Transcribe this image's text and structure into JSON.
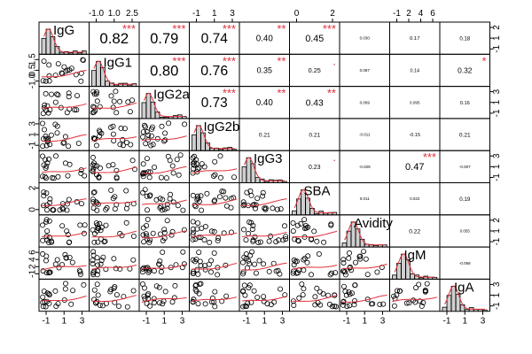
{
  "chart_data": {
    "type": "scatter-matrix",
    "variables": [
      "IgG",
      "IgG1",
      "IgG2a",
      "IgG2b",
      "IgG3",
      "SBA",
      "Avidity",
      "IgM",
      "IgA"
    ],
    "correlations": [
      {
        "row": 0,
        "col": 1,
        "value": "0.82",
        "stars": "***"
      },
      {
        "row": 0,
        "col": 2,
        "value": "0.79",
        "stars": "***"
      },
      {
        "row": 0,
        "col": 3,
        "value": "0.74",
        "stars": "***"
      },
      {
        "row": 0,
        "col": 4,
        "value": "0.40",
        "stars": "**"
      },
      {
        "row": 0,
        "col": 5,
        "value": "0.45",
        "stars": "***"
      },
      {
        "row": 0,
        "col": 6,
        "value": "0.030",
        "stars": ""
      },
      {
        "row": 0,
        "col": 7,
        "value": "0.17",
        "stars": ""
      },
      {
        "row": 0,
        "col": 8,
        "value": "0.18",
        "stars": ""
      },
      {
        "row": 1,
        "col": 2,
        "value": "0.80",
        "stars": "***"
      },
      {
        "row": 1,
        "col": 3,
        "value": "0.76",
        "stars": "***"
      },
      {
        "row": 1,
        "col": 4,
        "value": "0.35",
        "stars": "**"
      },
      {
        "row": 1,
        "col": 5,
        "value": "0.25",
        "stars": "."
      },
      {
        "row": 1,
        "col": 6,
        "value": "0.087",
        "stars": ""
      },
      {
        "row": 1,
        "col": 7,
        "value": "0.14",
        "stars": ""
      },
      {
        "row": 1,
        "col": 8,
        "value": "0.32",
        "stars": "*"
      },
      {
        "row": 2,
        "col": 3,
        "value": "0.73",
        "stars": "***"
      },
      {
        "row": 2,
        "col": 4,
        "value": "0.40",
        "stars": "**"
      },
      {
        "row": 2,
        "col": 5,
        "value": "0.43",
        "stars": "**"
      },
      {
        "row": 2,
        "col": 6,
        "value": "0.069",
        "stars": ""
      },
      {
        "row": 2,
        "col": 7,
        "value": "0.095",
        "stars": ""
      },
      {
        "row": 2,
        "col": 8,
        "value": "0.16",
        "stars": ""
      },
      {
        "row": 3,
        "col": 4,
        "value": "0.21",
        "stars": ""
      },
      {
        "row": 3,
        "col": 5,
        "value": "0.21",
        "stars": ""
      },
      {
        "row": 3,
        "col": 6,
        "value": "-0.011",
        "stars": ""
      },
      {
        "row": 3,
        "col": 7,
        "value": "-0.15",
        "stars": ""
      },
      {
        "row": 3,
        "col": 8,
        "value": "0.21",
        "stars": ""
      },
      {
        "row": 4,
        "col": 5,
        "value": "0.23",
        "stars": "."
      },
      {
        "row": 4,
        "col": 6,
        "value": "-0.029",
        "stars": ""
      },
      {
        "row": 4,
        "col": 7,
        "value": "0.47",
        "stars": "***"
      },
      {
        "row": 4,
        "col": 8,
        "value": "-0.007",
        "stars": ""
      },
      {
        "row": 5,
        "col": 6,
        "value": "0.011",
        "stars": ""
      },
      {
        "row": 5,
        "col": 7,
        "value": "0.022",
        "stars": ""
      },
      {
        "row": 5,
        "col": 8,
        "value": "0.19",
        "stars": ""
      },
      {
        "row": 6,
        "col": 7,
        "value": "0.22",
        "stars": ""
      },
      {
        "row": 6,
        "col": 8,
        "value": "0.055",
        "stars": ""
      },
      {
        "row": 7,
        "col": 8,
        "value": "-0.058",
        "stars": ""
      }
    ],
    "top_axis": [
      {
        "col": 1,
        "ticks": [
          "-1.0",
          "1.0",
          "2.5"
        ]
      },
      {
        "col": 3,
        "ticks": [
          "-1",
          "1",
          "3"
        ]
      },
      {
        "col": 5,
        "ticks": [
          "0",
          "2"
        ]
      },
      {
        "col": 7,
        "ticks": [
          "-1",
          "2",
          "4",
          "6"
        ]
      }
    ],
    "bottom_axis": [
      {
        "col": 0,
        "ticks": [
          "-1",
          "1",
          "3"
        ]
      },
      {
        "col": 2,
        "ticks": [
          "-1",
          "1",
          "3"
        ]
      },
      {
        "col": 4,
        "ticks": [
          "-1",
          "1",
          "3"
        ]
      },
      {
        "col": 6,
        "ticks": [
          "-1",
          "1",
          "3"
        ]
      },
      {
        "col": 8,
        "ticks": [
          "-1",
          "1",
          "3"
        ]
      }
    ],
    "left_axis": [
      {
        "row": 1,
        "ticks": [
          "-1.0",
          "0.5",
          "1.5"
        ]
      },
      {
        "row": 3,
        "ticks": [
          "-1",
          "1",
          "3"
        ]
      },
      {
        "row": 5,
        "ticks": [
          "0",
          "2"
        ]
      },
      {
        "row": 7,
        "ticks": [
          "-1",
          "2",
          "4",
          "6"
        ]
      }
    ],
    "right_axis": [
      {
        "row": 0,
        "ticks": [
          "-1",
          "1",
          "2"
        ]
      },
      {
        "row": 2,
        "ticks": [
          "-1",
          "1",
          "3"
        ]
      },
      {
        "row": 4,
        "ticks": [
          "-1",
          "1",
          "3"
        ]
      },
      {
        "row": 6,
        "ticks": [
          "-1",
          "1",
          "2"
        ]
      },
      {
        "row": 8,
        "ticks": [
          "-1",
          "1",
          "3"
        ]
      }
    ],
    "grid": false,
    "legend": "none",
    "colors": {
      "fit_line": "#e0303a",
      "stars": "#e0303a",
      "histogram_fill": "#cfcfcf"
    }
  }
}
